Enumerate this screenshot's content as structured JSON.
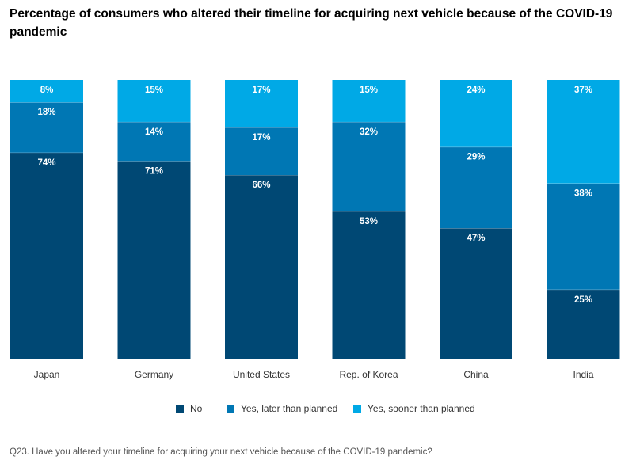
{
  "title": "Percentage of consumers who altered their timeline for acquiring next vehicle because of the COVID-19 pandemic",
  "footnote": "Q23. Have you altered your timeline for acquiring your next vehicle because of the COVID-19 pandemic?",
  "colors": {
    "no": "#004874",
    "later": "#0077b4",
    "sooner": "#00a9e6"
  },
  "chart_data": {
    "type": "bar",
    "stacked": true,
    "title": "Percentage of consumers who altered their timeline for acquiring next vehicle because of the COVID-19 pandemic",
    "categories": [
      "Japan",
      "Germany",
      "United States",
      "Rep. of Korea",
      "China",
      "India"
    ],
    "series": [
      {
        "name": "No",
        "key": "no",
        "values": [
          74,
          71,
          66,
          53,
          47,
          25
        ]
      },
      {
        "name": "Yes, later than planned",
        "key": "later",
        "values": [
          18,
          14,
          17,
          32,
          29,
          38
        ]
      },
      {
        "name": "Yes, sooner than planned",
        "key": "sooner",
        "values": [
          8,
          15,
          17,
          15,
          24,
          37
        ]
      }
    ],
    "value_suffix": "%",
    "ylim": [
      0,
      100
    ],
    "xlabel": "",
    "ylabel": "",
    "legend_position": "bottom"
  },
  "legend": {
    "no": "No",
    "later": "Yes, later than planned",
    "sooner": "Yes, sooner than planned"
  }
}
